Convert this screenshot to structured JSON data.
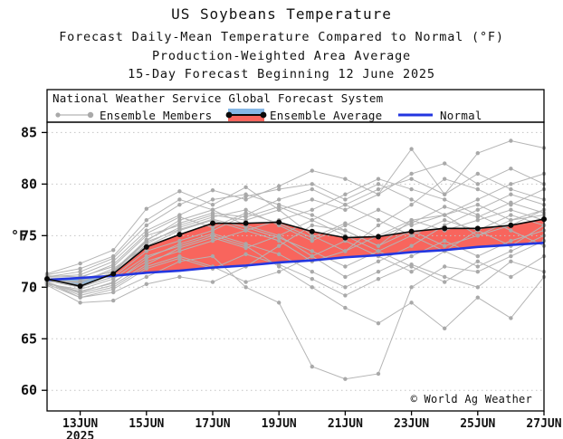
{
  "title": {
    "line1": "US Soybeans Temperature",
    "line2": "Forecast Daily-Mean Temperature Compared to Normal (°F)",
    "line3": "Production-Weighted Area Average",
    "line4": "15-Day Forecast Beginning 12 June 2025"
  },
  "legend": {
    "header": "National Weather Service Global Forecast System",
    "items": [
      {
        "label": "Ensemble Members",
        "swatch": "gray-line-with-dots"
      },
      {
        "label": "Ensemble Average",
        "swatch": "blue-red-band-black-line"
      },
      {
        "label": "Normal",
        "swatch": "blue-line"
      }
    ]
  },
  "axes": {
    "y": {
      "unit": "°F",
      "ticks": [
        60,
        65,
        70,
        75,
        80,
        85
      ],
      "range": [
        58,
        86
      ]
    },
    "x": {
      "labels": [
        "13JUN",
        "15JUN",
        "17JUN",
        "19JUN",
        "21JUN",
        "23JUN",
        "25JUN",
        "27JUN"
      ],
      "label_day_indices": [
        1,
        3,
        5,
        7,
        9,
        11,
        13,
        15
      ],
      "year": "2025"
    }
  },
  "copyright": "© World Ag Weather",
  "colors": {
    "member": "#b5b5b5",
    "member_dot": "#a9a9a9",
    "average": "#0a0a0a",
    "normal": "#2336e0",
    "above_fill": "#f8655d",
    "below_fill": "#85b7e6",
    "grid": "#c4c4c4",
    "axis": "#000000"
  },
  "chart_data": {
    "type": "line",
    "title": "US Soybeans Temperature",
    "ylabel": "°F",
    "ylim": [
      58,
      86
    ],
    "grid": "horizontal-dotted",
    "legend_position": "top-box",
    "x_dates": [
      "12JUN",
      "13JUN",
      "14JUN",
      "15JUN",
      "16JUN",
      "17JUN",
      "18JUN",
      "19JUN",
      "20JUN",
      "21JUN",
      "22JUN",
      "23JUN",
      "24JUN",
      "25JUN",
      "26JUN",
      "27JUN"
    ],
    "series": [
      {
        "name": "Ensemble Average",
        "values": [
          70.8,
          70.1,
          71.3,
          73.9,
          75.1,
          76.2,
          76.2,
          76.3,
          75.4,
          74.8,
          74.9,
          75.4,
          75.7,
          75.7,
          76.0,
          76.6
        ]
      },
      {
        "name": "Normal",
        "values": [
          70.7,
          70.9,
          71.1,
          71.4,
          71.6,
          71.9,
          72.1,
          72.4,
          72.6,
          72.9,
          73.1,
          73.4,
          73.6,
          73.9,
          74.1,
          74.3
        ]
      }
    ],
    "ensemble_members": [
      [
        71.0,
        71.5,
        72.8,
        76.0,
        78.0,
        79.4,
        78.5,
        79.8,
        81.3,
        80.5,
        79.0,
        83.4,
        79.0,
        83.0,
        84.2,
        83.5
      ],
      [
        70.5,
        69.0,
        69.5,
        71.0,
        72.5,
        73.0,
        70.0,
        68.5,
        62.3,
        61.1,
        61.6,
        70.0,
        72.0,
        71.5,
        73.0,
        74.5
      ],
      [
        70.2,
        68.5,
        68.7,
        70.3,
        71.0,
        70.5,
        72.0,
        74.0,
        76.0,
        75.5,
        74.0,
        76.5,
        77.0,
        75.0,
        76.5,
        77.0
      ],
      [
        71.3,
        72.3,
        73.6,
        77.6,
        79.3,
        78.0,
        79.7,
        77.5,
        75.0,
        73.5,
        76.0,
        78.0,
        80.5,
        79.5,
        78.0,
        79.5
      ],
      [
        70.9,
        70.8,
        71.5,
        74.5,
        76.5,
        77.5,
        76.0,
        75.0,
        73.0,
        71.0,
        72.5,
        74.0,
        76.0,
        77.5,
        79.0,
        78.0
      ],
      [
        70.6,
        70.0,
        71.0,
        73.5,
        74.5,
        75.5,
        77.0,
        78.5,
        79.5,
        78.0,
        76.5,
        75.0,
        73.5,
        75.5,
        74.0,
        76.0
      ],
      [
        70.4,
        69.5,
        70.5,
        72.5,
        73.5,
        74.5,
        75.5,
        76.5,
        77.5,
        79.0,
        80.5,
        79.5,
        78.5,
        77.0,
        75.5,
        74.0
      ],
      [
        71.1,
        71.0,
        72.0,
        75.0,
        76.0,
        77.0,
        76.5,
        77.5,
        78.5,
        77.5,
        79.0,
        81.0,
        82.0,
        80.0,
        81.5,
        80.0
      ],
      [
        70.7,
        70.5,
        71.8,
        74.0,
        75.5,
        76.5,
        75.5,
        74.5,
        72.5,
        73.5,
        75.0,
        76.5,
        75.5,
        76.5,
        77.5,
        76.5
      ],
      [
        70.3,
        69.8,
        70.8,
        73.0,
        74.0,
        75.0,
        74.0,
        72.0,
        70.0,
        68.0,
        66.5,
        68.5,
        66.0,
        69.0,
        67.0,
        71.0
      ],
      [
        70.8,
        70.2,
        71.2,
        74.2,
        75.8,
        76.8,
        77.5,
        76.0,
        74.5,
        76.0,
        77.5,
        76.0,
        77.0,
        78.5,
        80.0,
        81.0
      ],
      [
        70.5,
        69.2,
        70.0,
        72.0,
        73.0,
        72.0,
        70.5,
        71.5,
        73.0,
        74.5,
        73.0,
        71.5,
        73.5,
        72.0,
        73.5,
        75.0
      ],
      [
        71.0,
        71.2,
        72.5,
        75.5,
        77.0,
        78.5,
        79.0,
        78.0,
        77.0,
        75.5,
        74.0,
        75.5,
        74.0,
        75.0,
        76.0,
        77.5
      ],
      [
        70.6,
        70.6,
        71.6,
        74.6,
        76.2,
        77.2,
        76.8,
        77.8,
        76.5,
        78.0,
        79.5,
        80.5,
        79.0,
        81.0,
        79.5,
        78.5
      ],
      [
        70.4,
        69.6,
        70.4,
        72.8,
        74.2,
        75.2,
        74.2,
        73.2,
        71.5,
        70.0,
        71.5,
        73.0,
        74.5,
        73.0,
        74.5,
        75.5
      ],
      [
        71.2,
        71.8,
        73.0,
        76.5,
        78.5,
        77.5,
        78.8,
        79.5,
        80.0,
        78.5,
        80.0,
        78.5,
        77.0,
        78.0,
        76.5,
        77.5
      ],
      [
        70.7,
        70.4,
        71.4,
        74.4,
        75.6,
        76.6,
        75.8,
        74.8,
        73.5,
        72.0,
        73.5,
        75.0,
        76.5,
        75.5,
        77.0,
        76.0
      ],
      [
        70.5,
        69.4,
        70.2,
        72.2,
        73.8,
        74.8,
        73.8,
        75.0,
        76.5,
        75.0,
        73.5,
        72.0,
        70.5,
        72.5,
        71.0,
        73.0
      ],
      [
        70.9,
        70.9,
        72.2,
        75.2,
        76.8,
        75.8,
        77.2,
        76.2,
        74.8,
        76.2,
        74.8,
        76.2,
        77.8,
        76.8,
        78.2,
        77.2
      ],
      [
        70.3,
        69.0,
        69.8,
        71.8,
        72.8,
        71.8,
        73.2,
        72.2,
        70.8,
        69.2,
        70.8,
        72.2,
        71.0,
        70.0,
        72.5,
        71.5
      ]
    ]
  }
}
